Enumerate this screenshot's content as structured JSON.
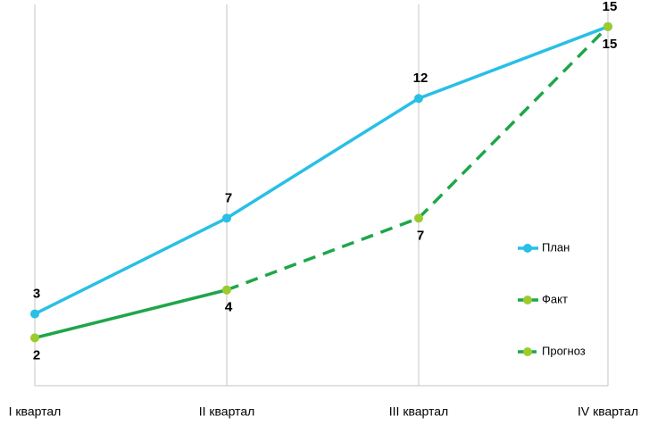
{
  "chart_data": {
    "type": "line",
    "categories": [
      "I квартал",
      "II квартал",
      "III квартал",
      "IV квартал"
    ],
    "series": [
      {
        "name": "План",
        "color": "#29bfe6",
        "marker_color": "#29bfe6",
        "dashed": false,
        "label_position": "above",
        "values": [
          3,
          7,
          12,
          15
        ]
      },
      {
        "name": "Факт",
        "color": "#1ea64a",
        "marker_color": "#9ccb2e",
        "dashed": false,
        "label_position": "below",
        "values": [
          2,
          4,
          null,
          null
        ]
      },
      {
        "name": "Прогноз",
        "color": "#1ea64a",
        "marker_color": "#9ccb2e",
        "dashed": true,
        "label_position": "below",
        "values": [
          null,
          4,
          7,
          15
        ]
      }
    ],
    "ylim": [
      0,
      16
    ],
    "grid": true,
    "legend": "right"
  }
}
